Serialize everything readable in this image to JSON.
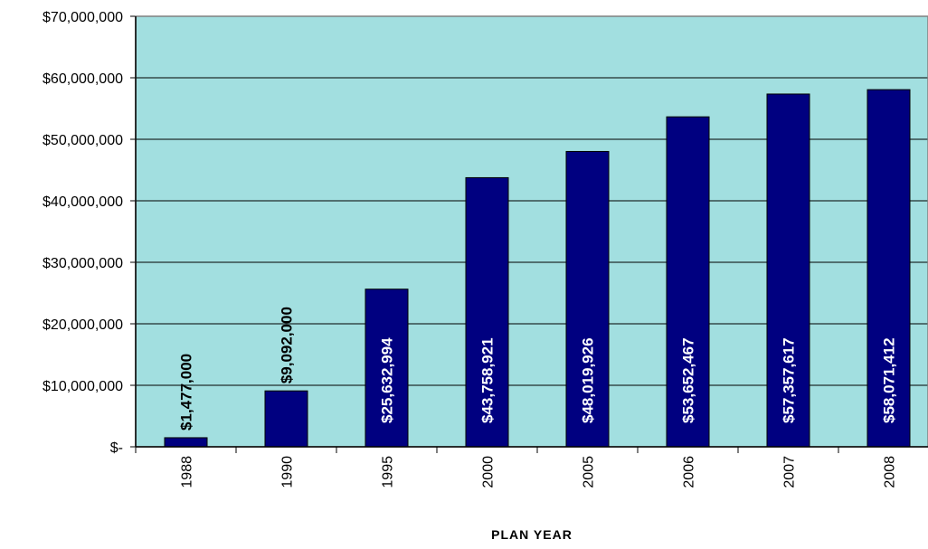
{
  "chart_data": {
    "type": "bar",
    "title": "",
    "xlabel": "PLAN YEAR",
    "ylabel": "",
    "categories": [
      "1988",
      "1990",
      "1995",
      "2000",
      "2005",
      "2006",
      "2007",
      "2008"
    ],
    "values": [
      1477000,
      9092000,
      25632994,
      43758921,
      48019926,
      53652467,
      57357617,
      58071412
    ],
    "value_labels": [
      "$1,477,000",
      "$9,092,000",
      "$25,632,994",
      "$43,758,921",
      "$48,019,926",
      "$53,652,467",
      "$57,357,617",
      "$58,071,412"
    ],
    "ylim": [
      0,
      70000000
    ],
    "yticks": [
      0,
      10000000,
      20000000,
      30000000,
      40000000,
      50000000,
      60000000,
      70000000
    ],
    "ytick_labels": [
      "$-",
      "$10,000,000",
      "$20,000,000",
      "$30,000,000",
      "$40,000,000",
      "$50,000,000",
      "$60,000,000",
      "$70,000,000"
    ],
    "grid": true,
    "legend": "none",
    "colors": {
      "plot_background": "#a2dfe0",
      "bar_fill": "#000080",
      "bar_stroke": "#000000",
      "gridline": "#000000",
      "label_inside": "#ffffff",
      "label_outside": "#000000"
    }
  }
}
